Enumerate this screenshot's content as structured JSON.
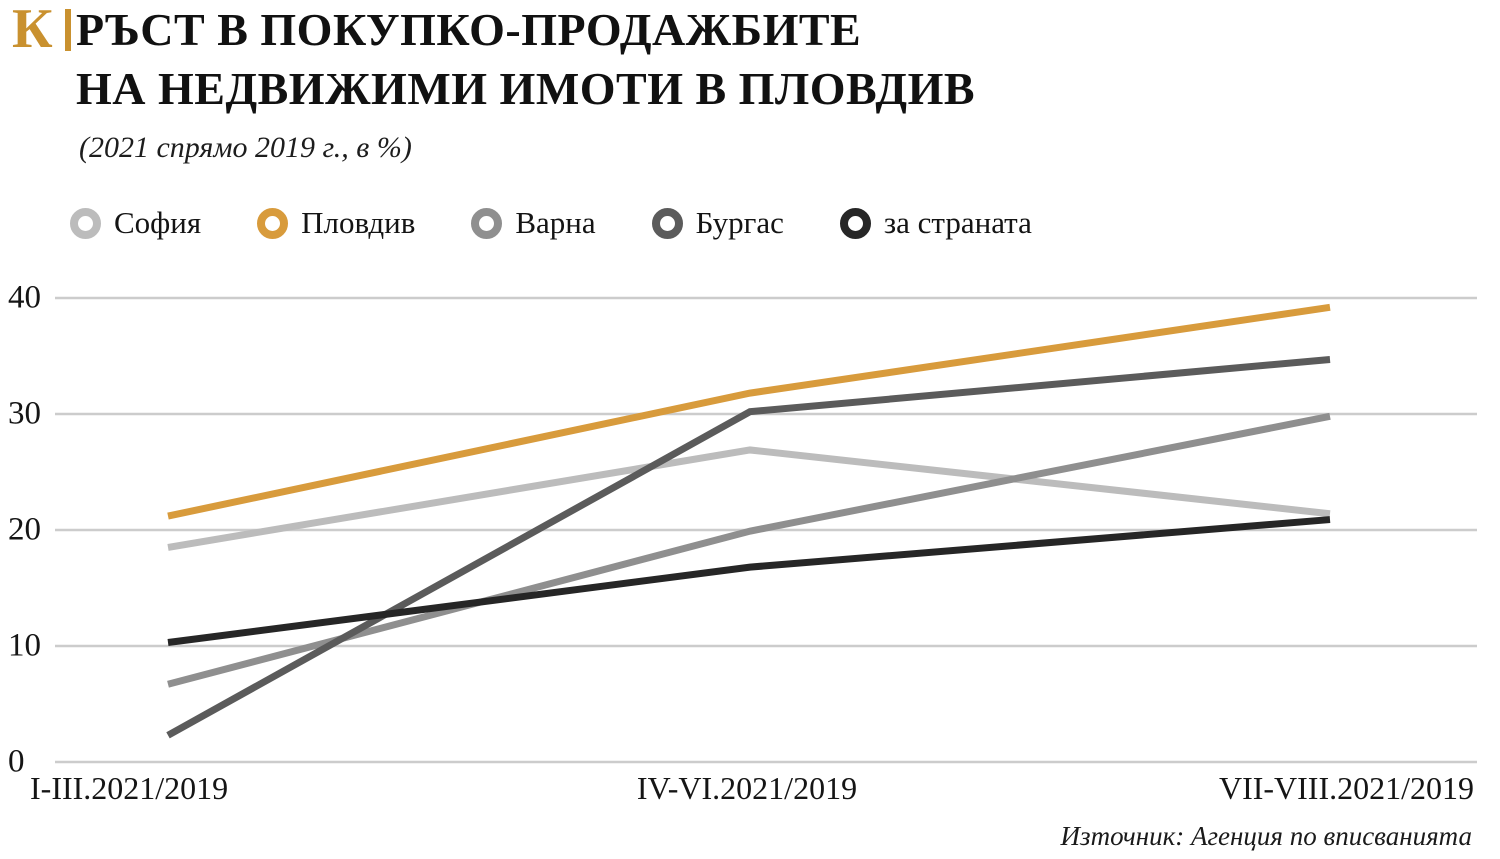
{
  "brand": {
    "logo_letter": "К",
    "color": "#c9912f"
  },
  "header": {
    "title_line1": "РЪСТ В ПОКУПКО-ПРОДАЖБИТЕ",
    "title_line2": "НА НЕДВИЖИМИ ИМОТИ В ПЛОВДИВ",
    "subtitle": "(2021 спрямо 2019 г., в %)"
  },
  "source": "Източник: Агенция по вписванията",
  "chart_data": {
    "type": "line",
    "title": "Ръст в покупко-продажбите на недвижими имоти в Пловдив",
    "subtitle": "(2021 спрямо 2019 г., в %)",
    "categories": [
      "I-III.2021/2019",
      "IV-VI.2021/2019",
      "VII-VIII.2021/2019"
    ],
    "y_ticks": [
      0,
      10,
      20,
      30,
      40
    ],
    "ylim": [
      0,
      40
    ],
    "grid": true,
    "grid_color": "#cccccc",
    "legend_position": "top",
    "series": [
      {
        "name": "София",
        "color": "#bcbcbc",
        "values": [
          18.5,
          26.9,
          21.4
        ]
      },
      {
        "name": "Пловдив",
        "color": "#d89b3c",
        "values": [
          21.2,
          31.8,
          39.2
        ]
      },
      {
        "name": "Варна",
        "color": "#8f8f8f",
        "values": [
          6.7,
          19.9,
          29.8
        ]
      },
      {
        "name": "Бургас",
        "color": "#5b5b5b",
        "values": [
          2.3,
          30.2,
          34.7
        ]
      },
      {
        "name": "за страната",
        "color": "#262626",
        "values": [
          10.3,
          16.8,
          20.9
        ]
      }
    ]
  }
}
